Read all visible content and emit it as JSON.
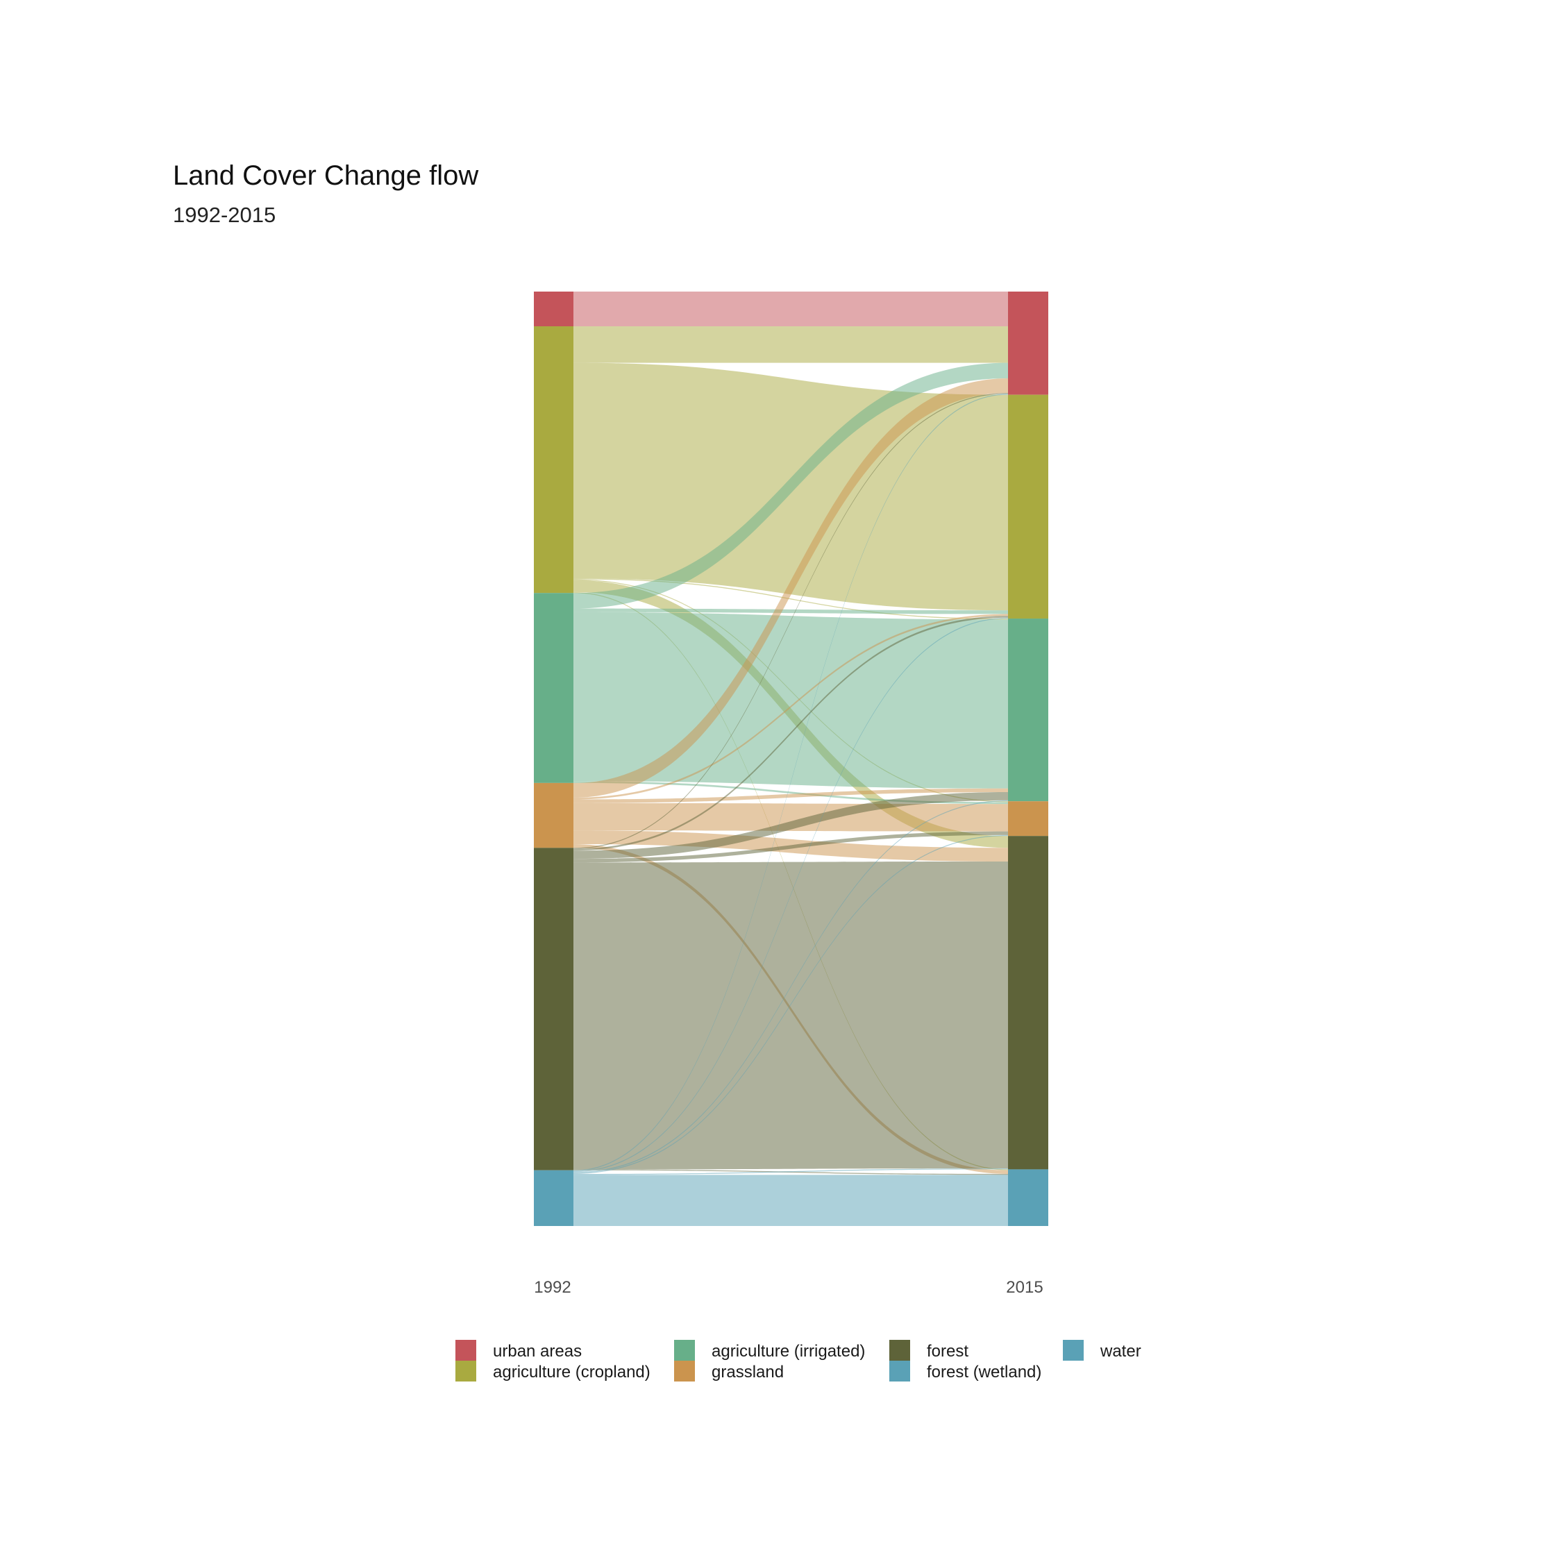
{
  "chart_data": {
    "type": "alluvial",
    "title": "Land Cover Change flow",
    "subtitle": "1992-2015",
    "axis_labels": [
      "1992",
      "2015"
    ],
    "categories": [
      {
        "key": "urban",
        "label": "urban areas",
        "color": "#C4545A"
      },
      {
        "key": "cropland",
        "label": "agriculture (cropland)",
        "color": "#A9AA40"
      },
      {
        "key": "irrigated",
        "label": "agriculture (irrigated)",
        "color": "#67AF89"
      },
      {
        "key": "grassland",
        "label": "grassland",
        "color": "#CB944E"
      },
      {
        "key": "forest",
        "label": "forest",
        "color": "#5E6339"
      },
      {
        "key": "wetland",
        "label": "forest (wetland)",
        "color": "#5AA1B6"
      },
      {
        "key": "water",
        "label": "water",
        "color": "#5AA1B6"
      }
    ],
    "flows": [
      {
        "from": "urban",
        "to": "urban",
        "value": 38
      },
      {
        "from": "cropland",
        "to": "urban",
        "value": 40
      },
      {
        "from": "cropland",
        "to": "cropland",
        "value": 236
      },
      {
        "from": "cropland",
        "to": "irrigated",
        "value": 1
      },
      {
        "from": "cropland",
        "to": "grassland",
        "value": 1
      },
      {
        "from": "cropland",
        "to": "forest",
        "value": 13
      },
      {
        "from": "cropland",
        "to": "water",
        "value": 1
      },
      {
        "from": "irrigated",
        "to": "urban",
        "value": 17
      },
      {
        "from": "irrigated",
        "to": "cropland",
        "value": 4
      },
      {
        "from": "irrigated",
        "to": "irrigated",
        "value": 185
      },
      {
        "from": "irrigated",
        "to": "grassland",
        "value": 2
      },
      {
        "from": "grassland",
        "to": "urban",
        "value": 16
      },
      {
        "from": "grassland",
        "to": "cropland",
        "value": 2
      },
      {
        "from": "grassland",
        "to": "irrigated",
        "value": 4
      },
      {
        "from": "grassland",
        "to": "grassland",
        "value": 30
      },
      {
        "from": "grassland",
        "to": "forest",
        "value": 15
      },
      {
        "from": "grassland",
        "to": "water",
        "value": 4
      },
      {
        "from": "forest",
        "to": "urban",
        "value": 1
      },
      {
        "from": "forest",
        "to": "cropland",
        "value": 2
      },
      {
        "from": "forest",
        "to": "irrigated",
        "value": 9
      },
      {
        "from": "forest",
        "to": "grassland",
        "value": 4
      },
      {
        "from": "forest",
        "to": "forest",
        "value": 336
      },
      {
        "from": "forest",
        "to": "water",
        "value": 1
      },
      {
        "from": "water",
        "to": "urban",
        "value": 1
      },
      {
        "from": "water",
        "to": "cropland",
        "value": 1
      },
      {
        "from": "water",
        "to": "irrigated",
        "value": 1
      },
      {
        "from": "water",
        "to": "grassland",
        "value": 1
      },
      {
        "from": "water",
        "to": "forest",
        "value": 1
      },
      {
        "from": "water",
        "to": "water",
        "value": 56
      }
    ],
    "legend_position": "bottom"
  }
}
